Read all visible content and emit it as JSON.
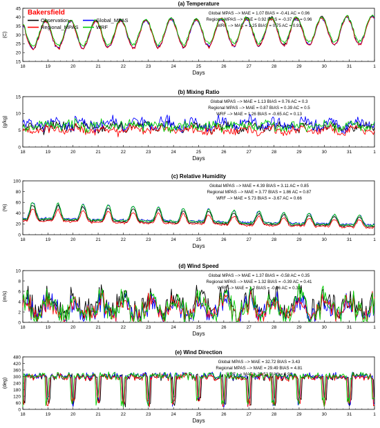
{
  "station": "Bakersfield",
  "x_axis": {
    "label": "Days",
    "ticks": [
      "18",
      "19",
      "20",
      "21",
      "22",
      "23",
      "24",
      "25",
      "26",
      "27",
      "28",
      "29",
      "30",
      "31",
      "1"
    ],
    "range": [
      18,
      32
    ]
  },
  "colors": {
    "Observation": "#000000",
    "Global_MPAS": "#0000ff",
    "Regional_MPAS": "#ff0000",
    "WRF": "#00cc00",
    "station_label": "#ff0000"
  },
  "legend": [
    {
      "name": "Observation"
    },
    {
      "name": "Global_MPAS"
    },
    {
      "name": "Regional_MPAS"
    },
    {
      "name": "WRF"
    }
  ],
  "chart_data": [
    {
      "type": "line",
      "title": "(a) Temperature",
      "ylabel": "(C)",
      "xlabel": "Days",
      "ylim": [
        15,
        45
      ],
      "yticks": [
        "15",
        "20",
        "25",
        "30",
        "35",
        "40",
        "45"
      ],
      "grid": false,
      "stats": [
        "Global MPAS --> MAE = 1.07 BIAS = -0.41 AC = 0.96",
        "Regional MPAS --> MAE = 0.92 BIAS = -0.37 AC = 0.96",
        "WRF --> MAE = 1.25 BIAS = 0.75 AC = 0.91"
      ],
      "approx_series": {
        "kind": "diurnal",
        "base": 30,
        "amp": 8,
        "trend": 0.2,
        "phase": 0.65,
        "min": 16,
        "max": 43
      },
      "series": [
        {
          "name": "Observation",
          "offset": 0,
          "amp_scale": 1.0
        },
        {
          "name": "Global_MPAS",
          "offset": -0.4,
          "amp_scale": 0.95
        },
        {
          "name": "Regional_MPAS",
          "offset": -0.4,
          "amp_scale": 0.98
        },
        {
          "name": "WRF",
          "offset": 0.7,
          "amp_scale": 0.9
        }
      ]
    },
    {
      "type": "line",
      "title": "(b) Mixing Ratio",
      "ylabel": "(g/kg)",
      "xlabel": "Days",
      "ylim": [
        0,
        15
      ],
      "yticks": [
        "0",
        "5",
        "10",
        "15"
      ],
      "grid": false,
      "stats": [
        "Global MPAS --> MAE = 1.13 BIAS = 0.76 AC = 0.3",
        "Regional MPAS --> MAE = 0.87 BIAS = 0.39 AC = 0.5",
        "WRF --> MAE = 1.26 BIAS = -0.65 AC = 0.13"
      ],
      "approx_series": {
        "kind": "noisy",
        "base": 6,
        "amp": 1.2,
        "trend": 0,
        "phase": 0.2,
        "min": 2,
        "max": 12
      },
      "series": [
        {
          "name": "Observation",
          "offset": 0,
          "amp_scale": 1.0
        },
        {
          "name": "Global_MPAS",
          "offset": 0.8,
          "amp_scale": 1.3
        },
        {
          "name": "Regional_MPAS",
          "offset": -1.0,
          "amp_scale": 0.9
        },
        {
          "name": "WRF",
          "offset": 0.3,
          "amp_scale": 1.0
        }
      ]
    },
    {
      "type": "line",
      "title": "(c) Relative Humidity",
      "ylabel": "(%)",
      "xlabel": "Days",
      "ylim": [
        0,
        100
      ],
      "yticks": [
        "0",
        "20",
        "40",
        "60",
        "80",
        "100"
      ],
      "grid": false,
      "stats": [
        "Global MPAS --> MAE = 4.39 BIAS = 3.11 AC = 0.85",
        "Regional MPAS --> MAE = 3.77 BIAS = 1.86 AC = 0.87",
        "WRF --> MAE = 5.73 BIAS = -3.67 AC = 0.66"
      ],
      "approx_series": {
        "kind": "diurnal_decay",
        "base": 28,
        "amp": 18,
        "trend": -0.9,
        "phase": 0.15,
        "min": 8,
        "max": 65
      },
      "series": [
        {
          "name": "Observation",
          "offset": 0,
          "amp_scale": 1.0
        },
        {
          "name": "Global_MPAS",
          "offset": 3,
          "amp_scale": 1.05
        },
        {
          "name": "Regional_MPAS",
          "offset": -2,
          "amp_scale": 0.8
        },
        {
          "name": "WRF",
          "offset": 2,
          "amp_scale": 1.1
        }
      ]
    },
    {
      "type": "line",
      "title": "(d) Wind Speed",
      "ylabel": "(m/s)",
      "xlabel": "Days",
      "ylim": [
        0,
        10
      ],
      "yticks": [
        "0",
        "2",
        "4",
        "6",
        "8",
        "10"
      ],
      "grid": false,
      "stats": [
        "Global MPAS --> MAE = 1.37 BIAS = -0.58 AC = 0.35",
        "Regional MPAS --> MAE = 1.32 BIAS = -0.39 AC = 0.41",
        "WRF --> MAE = 1.2 BIAS = -0.96 AC = 0.33"
      ],
      "approx_series": {
        "kind": "wind",
        "base": 2.8,
        "amp": 1.6,
        "trend": 0,
        "phase": 0.8,
        "min": 0.2,
        "max": 8.5
      },
      "series": [
        {
          "name": "Observation",
          "offset": 0.6,
          "amp_scale": 1.2
        },
        {
          "name": "Global_MPAS",
          "offset": -0.3,
          "amp_scale": 1.1
        },
        {
          "name": "Regional_MPAS",
          "offset": -0.2,
          "amp_scale": 1.0
        },
        {
          "name": "WRF",
          "offset": 0.0,
          "amp_scale": 1.3
        }
      ]
    },
    {
      "type": "line",
      "title": "(e) Wind Direction",
      "ylabel": "(deg)",
      "xlabel": "Days",
      "ylim": [
        0,
        480
      ],
      "yticks": [
        "0",
        "60",
        "120",
        "180",
        "240",
        "300",
        "360",
        "420",
        "480"
      ],
      "grid": false,
      "stats": [
        "Global MPAS --> MAE = 32.72 BIAS = 3.43",
        "Regional MPAS --> MAE = 29.49 BIAS = 4.81",
        "WRF --> MAE = 35.53 BIAS = 3.96"
      ],
      "approx_series": {
        "kind": "direction",
        "base": 300,
        "amp": 30,
        "trend": 0,
        "phase": 0.4,
        "min": 0,
        "max": 360
      },
      "series": [
        {
          "name": "Observation",
          "offset": 0,
          "amp_scale": 1.0
        },
        {
          "name": "Global_MPAS",
          "offset": 5,
          "amp_scale": 1.0
        },
        {
          "name": "Regional_MPAS",
          "offset": -5,
          "amp_scale": 1.0
        },
        {
          "name": "WRF",
          "offset": 8,
          "amp_scale": 1.0
        }
      ]
    }
  ]
}
